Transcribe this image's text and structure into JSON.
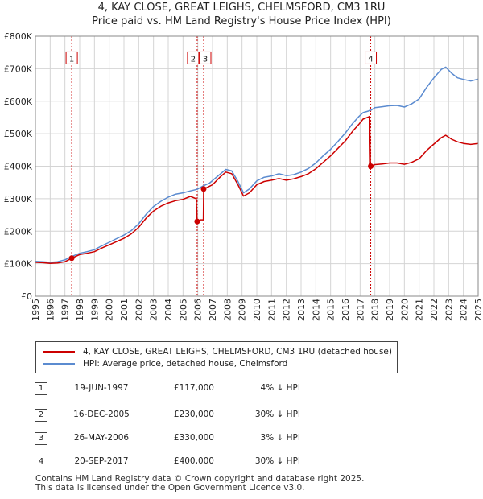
{
  "chart_data": {
    "type": "line",
    "title": "4, KAY CLOSE, GREAT LEIGHS, CHELMSFORD, CM3 1RU",
    "subtitle": "Price paid vs. HM Land Registry's House Price Index (HPI)",
    "xlim": [
      1995,
      2025
    ],
    "ylim": [
      0,
      800000
    ],
    "x_ticks": [
      1995,
      1996,
      1997,
      1998,
      1999,
      2000,
      2001,
      2002,
      2003,
      2004,
      2005,
      2006,
      2007,
      2008,
      2009,
      2010,
      2011,
      2012,
      2013,
      2014,
      2015,
      2016,
      2017,
      2018,
      2019,
      2020,
      2021,
      2022,
      2023,
      2024,
      2025
    ],
    "y_ticks": [
      {
        "value": 0,
        "label": "£0"
      },
      {
        "value": 100000,
        "label": "£100K"
      },
      {
        "value": 200000,
        "label": "£200K"
      },
      {
        "value": 300000,
        "label": "£300K"
      },
      {
        "value": 400000,
        "label": "£400K"
      },
      {
        "value": 500000,
        "label": "£500K"
      },
      {
        "value": 600000,
        "label": "£600K"
      },
      {
        "value": 700000,
        "label": "£700K"
      },
      {
        "value": 800000,
        "label": "£800K"
      }
    ],
    "series": [
      {
        "name": "4, KAY CLOSE, GREAT LEIGHS, CHELMSFORD, CM3 1RU (detached house)",
        "color": "#cc0000",
        "points": [
          [
            1995.0,
            104000
          ],
          [
            1995.5,
            103000
          ],
          [
            1996.0,
            101000
          ],
          [
            1996.5,
            102000
          ],
          [
            1997.0,
            106000
          ],
          [
            1997.46,
            117000
          ],
          [
            1998.0,
            128000
          ],
          [
            1998.5,
            132000
          ],
          [
            1999.0,
            137000
          ],
          [
            1999.5,
            148000
          ],
          [
            2000.0,
            158000
          ],
          [
            2000.5,
            168000
          ],
          [
            2001.0,
            178000
          ],
          [
            2001.5,
            192000
          ],
          [
            2002.0,
            212000
          ],
          [
            2002.5,
            240000
          ],
          [
            2003.0,
            262000
          ],
          [
            2003.5,
            277000
          ],
          [
            2004.0,
            287000
          ],
          [
            2004.5,
            294000
          ],
          [
            2005.0,
            298000
          ],
          [
            2005.5,
            307000
          ],
          [
            2005.9,
            300000
          ],
          [
            2005.96,
            230000
          ],
          [
            2006.2,
            235000
          ],
          [
            2006.38,
            235000
          ],
          [
            2006.4,
            330000
          ],
          [
            2006.7,
            336000
          ],
          [
            2007.0,
            343000
          ],
          [
            2007.5,
            366000
          ],
          [
            2007.9,
            382000
          ],
          [
            2008.3,
            377000
          ],
          [
            2008.7,
            345000
          ],
          [
            2009.1,
            308000
          ],
          [
            2009.5,
            318000
          ],
          [
            2010.0,
            343000
          ],
          [
            2010.5,
            353000
          ],
          [
            2011.0,
            357000
          ],
          [
            2011.5,
            362000
          ],
          [
            2012.0,
            357000
          ],
          [
            2012.5,
            361000
          ],
          [
            2013.0,
            368000
          ],
          [
            2013.5,
            377000
          ],
          [
            2014.0,
            392000
          ],
          [
            2014.5,
            412000
          ],
          [
            2015.0,
            432000
          ],
          [
            2015.5,
            455000
          ],
          [
            2016.0,
            478000
          ],
          [
            2016.5,
            508000
          ],
          [
            2016.9,
            528000
          ],
          [
            2017.2,
            545000
          ],
          [
            2017.65,
            553000
          ],
          [
            2017.7,
            400000
          ],
          [
            2018.0,
            405000
          ],
          [
            2018.5,
            407000
          ],
          [
            2019.0,
            410000
          ],
          [
            2019.5,
            410000
          ],
          [
            2020.0,
            406000
          ],
          [
            2020.5,
            412000
          ],
          [
            2021.0,
            423000
          ],
          [
            2021.5,
            448000
          ],
          [
            2022.0,
            468000
          ],
          [
            2022.5,
            488000
          ],
          [
            2022.8,
            495000
          ],
          [
            2023.2,
            483000
          ],
          [
            2023.6,
            475000
          ],
          [
            2024.0,
            470000
          ],
          [
            2024.5,
            467000
          ],
          [
            2025.0,
            470000
          ]
        ]
      },
      {
        "name": "HPI: Average price, detached house, Chelmsford",
        "color": "#5b8bd0",
        "points": [
          [
            1995.0,
            107000
          ],
          [
            1995.5,
            106000
          ],
          [
            1996.0,
            104000
          ],
          [
            1996.5,
            106000
          ],
          [
            1997.0,
            112000
          ],
          [
            1997.46,
            122000
          ],
          [
            1998.0,
            132000
          ],
          [
            1998.5,
            137000
          ],
          [
            1999.0,
            143000
          ],
          [
            1999.5,
            155000
          ],
          [
            2000.0,
            166000
          ],
          [
            2000.5,
            177000
          ],
          [
            2001.0,
            188000
          ],
          [
            2001.5,
            202000
          ],
          [
            2002.0,
            223000
          ],
          [
            2002.5,
            252000
          ],
          [
            2003.0,
            276000
          ],
          [
            2003.5,
            292000
          ],
          [
            2004.0,
            305000
          ],
          [
            2004.5,
            314000
          ],
          [
            2005.0,
            318000
          ],
          [
            2005.5,
            324000
          ],
          [
            2005.96,
            329000
          ],
          [
            2006.4,
            340000
          ],
          [
            2006.8,
            348000
          ],
          [
            2007.0,
            356000
          ],
          [
            2007.5,
            375000
          ],
          [
            2007.9,
            390000
          ],
          [
            2008.3,
            386000
          ],
          [
            2008.7,
            355000
          ],
          [
            2009.1,
            318000
          ],
          [
            2009.5,
            330000
          ],
          [
            2010.0,
            355000
          ],
          [
            2010.5,
            366000
          ],
          [
            2011.0,
            370000
          ],
          [
            2011.5,
            377000
          ],
          [
            2012.0,
            371000
          ],
          [
            2012.5,
            374000
          ],
          [
            2013.0,
            382000
          ],
          [
            2013.5,
            393000
          ],
          [
            2014.0,
            410000
          ],
          [
            2014.5,
            432000
          ],
          [
            2015.0,
            452000
          ],
          [
            2015.5,
            476000
          ],
          [
            2016.0,
            502000
          ],
          [
            2016.5,
            532000
          ],
          [
            2016.9,
            552000
          ],
          [
            2017.2,
            565000
          ],
          [
            2017.72,
            572000
          ],
          [
            2018.0,
            580000
          ],
          [
            2018.5,
            583000
          ],
          [
            2019.0,
            586000
          ],
          [
            2019.5,
            587000
          ],
          [
            2020.0,
            582000
          ],
          [
            2020.5,
            592000
          ],
          [
            2021.0,
            607000
          ],
          [
            2021.5,
            642000
          ],
          [
            2022.0,
            672000
          ],
          [
            2022.5,
            698000
          ],
          [
            2022.8,
            705000
          ],
          [
            2023.2,
            686000
          ],
          [
            2023.6,
            672000
          ],
          [
            2024.0,
            667000
          ],
          [
            2024.5,
            662000
          ],
          [
            2025.0,
            668000
          ]
        ]
      }
    ],
    "sales": [
      {
        "n": "1",
        "x": 1997.46,
        "price": 117000,
        "date": "19-JUN-1997",
        "price_label": "£117,000",
        "hpi": "4% ↓ HPI",
        "box_level": 732000
      },
      {
        "n": "2",
        "x": 2005.96,
        "price": 230000,
        "date": "16-DEC-2005",
        "price_label": "£230,000",
        "hpi": "30% ↓ HPI",
        "box_level": 732000
      },
      {
        "n": "3",
        "x": 2006.4,
        "price": 330000,
        "date": "26-MAY-2006",
        "price_label": "£330,000",
        "hpi": "3% ↓ HPI",
        "box_level": 732000
      },
      {
        "n": "4",
        "x": 2017.72,
        "price": 400000,
        "date": "20-SEP-2017",
        "price_label": "£400,000",
        "hpi": "30% ↓ HPI",
        "box_level": 732000
      }
    ],
    "legend": {
      "position": "below-chart"
    }
  },
  "footer": {
    "line1": "Contains HM Land Registry data © Crown copyright and database right 2025.",
    "line2": "This data is licensed under the Open Government Licence v3.0."
  }
}
